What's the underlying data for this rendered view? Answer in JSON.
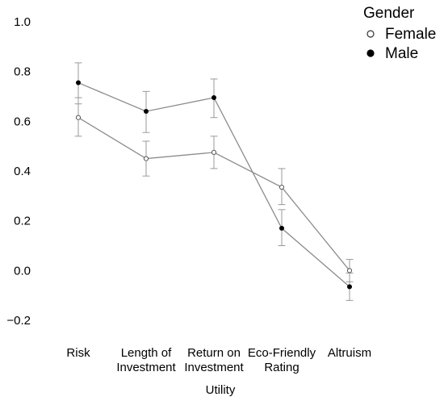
{
  "chart_data": {
    "type": "line",
    "title": "",
    "xlabel": "Utility",
    "ylabel": "",
    "ylim": [
      -0.2,
      1.0
    ],
    "yticks": [
      -0.2,
      0.0,
      0.2,
      0.4,
      0.6,
      0.8,
      1.0
    ],
    "ytick_labels": [
      "−0.2",
      "0.0",
      "0.2",
      "0.4",
      "0.6",
      "0.8",
      "1.0"
    ],
    "categories": [
      "Risk",
      "Length of Investment",
      "Return on Investment",
      "Eco-Friendly Rating",
      "Altruism"
    ],
    "category_lines": [
      [
        "Risk"
      ],
      [
        "Length of",
        "Investment"
      ],
      [
        "Return on",
        "Investment"
      ],
      [
        "Eco-Friendly",
        "Rating"
      ],
      [
        "Altruism"
      ]
    ],
    "legend": {
      "title": "Gender",
      "placement": "top-right"
    },
    "grid": false,
    "series": [
      {
        "name": "Female",
        "marker": "open-circle",
        "values": [
          0.615,
          0.45,
          0.475,
          0.335,
          0.0
        ],
        "err_low": [
          0.54,
          0.38,
          0.41,
          0.265,
          -0.045
        ],
        "err_high": [
          0.695,
          0.52,
          0.54,
          0.41,
          0.045
        ]
      },
      {
        "name": "Male",
        "marker": "filled-circle",
        "values": [
          0.755,
          0.64,
          0.695,
          0.17,
          -0.065
        ],
        "err_low": [
          0.67,
          0.555,
          0.615,
          0.1,
          -0.12
        ],
        "err_high": [
          0.835,
          0.72,
          0.77,
          0.245,
          -0.01
        ]
      }
    ],
    "colors": {
      "line": "#8c8c8c",
      "errorbar": "#9a9a9a",
      "marker_edge": "#555555",
      "male_marker": "#000000",
      "female_marker": "#ffffff"
    }
  }
}
